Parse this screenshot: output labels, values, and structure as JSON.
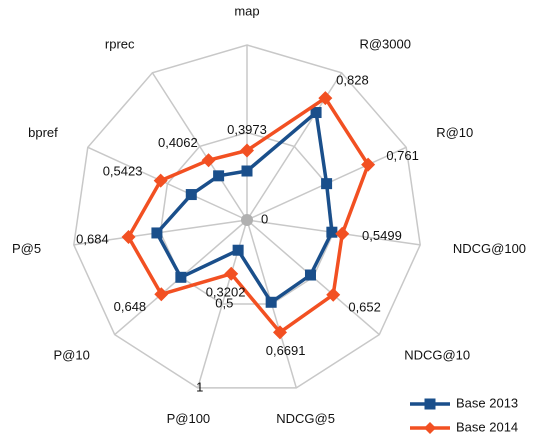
{
  "chart_data": {
    "type": "radar",
    "categories": [
      "map",
      "R@3000",
      "R@10",
      "NDCG@100",
      "NDCG@10",
      "NDCG@5",
      "P@100",
      "P@10",
      "P@5",
      "bpref",
      "rprec"
    ],
    "ylim": [
      0,
      1
    ],
    "yticks": [
      0,
      {
        "value": 0.5,
        "label": "0,5"
      },
      1
    ],
    "grid": true,
    "legend": "bottom-right",
    "series": [
      {
        "name": "Base 2013",
        "color": "#1a4f8b",
        "marker": "square",
        "values": [
          0.28,
          0.73,
          0.5,
          0.49,
          0.48,
          0.49,
          0.18,
          0.5,
          0.52,
          0.35,
          0.3
        ]
      },
      {
        "name": "Base 2014",
        "color": "#f25022",
        "marker": "diamond",
        "values": [
          0.3973,
          0.828,
          0.761,
          0.5499,
          0.652,
          0.6691,
          0.3202,
          0.648,
          0.684,
          0.5423,
          0.4062
        ],
        "value_labels": [
          "0,3973",
          "0,828",
          "0,761",
          "0,5499",
          "0,652",
          "0,6691",
          "0,3202",
          "0,648",
          "0,684",
          "0,5423",
          "0,4062"
        ]
      }
    ]
  }
}
